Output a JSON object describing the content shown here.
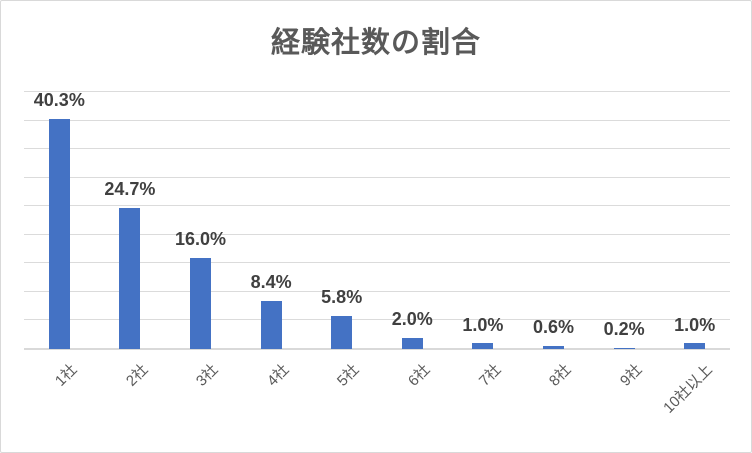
{
  "chart_data": {
    "type": "bar",
    "title": "経験社数の割合",
    "categories": [
      "1社",
      "2社",
      "3社",
      "4社",
      "5社",
      "6社",
      "7社",
      "8社",
      "9社",
      "10社以上"
    ],
    "values": [
      40.3,
      24.7,
      16.0,
      8.4,
      5.8,
      2.0,
      1.0,
      0.6,
      0.2,
      1.0
    ],
    "data_labels": [
      "40.3%",
      "24.7%",
      "16.0%",
      "8.4%",
      "5.8%",
      "2.0%",
      "1.0%",
      "0.6%",
      "0.2%",
      "1.0%"
    ],
    "xlabel": "",
    "ylabel": "",
    "ylim": [
      0,
      45
    ],
    "gridline_step": 5,
    "grid": true,
    "legend": "none",
    "category_label_rotation_deg": -45,
    "bar_color": "#4472C4",
    "title_color": "#595959",
    "data_label_color": "#404040",
    "category_label_color": "#595959",
    "gridline_color": "#dbdbdb",
    "axis_line_color": "#d9d9d9",
    "background_color": "#ffffff",
    "border_color": "#d9d9d9"
  }
}
